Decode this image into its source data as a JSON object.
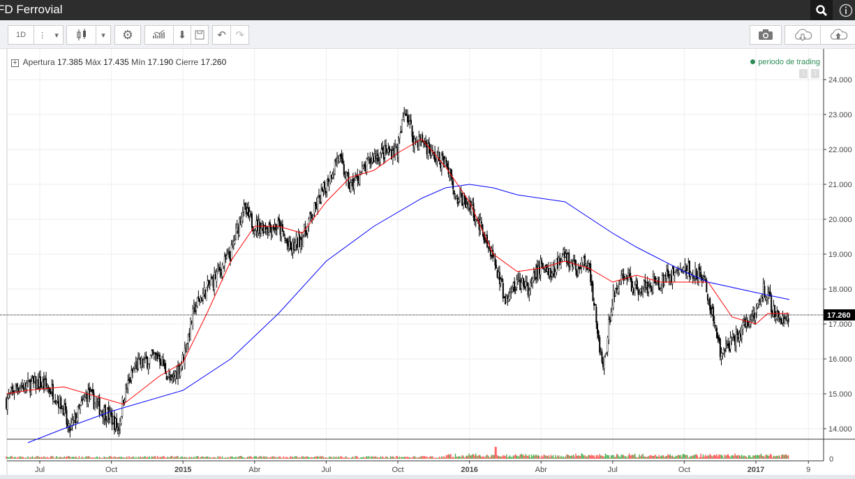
{
  "header": {
    "title": "FD Ferrovial",
    "search_icon": "search-icon",
    "info_icon": "info-icon"
  },
  "toolbar": {
    "interval": "1D"
  },
  "legend": {
    "open_label": "Apertura",
    "open": "17.385",
    "high_label": "Máx",
    "high": "17.435",
    "low_label": "Mín",
    "low": "17.190",
    "close_label": "Cierre",
    "close": "17.260"
  },
  "period_label": "periodo de trading",
  "colors": {
    "up": "#4caf50",
    "down": "#ff5252",
    "ma_fast": "#ff0000",
    "ma_slow": "#0000ff",
    "period": "#2e8b57"
  },
  "chart_data": {
    "type": "candlestick",
    "title": "FD Ferrovial",
    "ylim": [
      13.6,
      24.6
    ],
    "y_ticks": [
      "24.000",
      "23.000",
      "22.000",
      "21.000",
      "20.000",
      "19.000",
      "18.000",
      "17.000",
      "16.000",
      "15.000",
      "14.000"
    ],
    "x_ticks": [
      {
        "label": "Jul",
        "m": 0
      },
      {
        "label": "Oct",
        "m": 3
      },
      {
        "label": "2015",
        "m": 6
      },
      {
        "label": "Abr",
        "m": 9
      },
      {
        "label": "Jul",
        "m": 12
      },
      {
        "label": "Oct",
        "m": 15
      },
      {
        "label": "2016",
        "m": 18
      },
      {
        "label": "Abr",
        "m": 21
      },
      {
        "label": "Jul",
        "m": 24
      },
      {
        "label": "Oct",
        "m": 27
      },
      {
        "label": "2017",
        "m": 30
      },
      {
        "label": "9",
        "m": 32.2
      }
    ],
    "last_price": "17.260",
    "volume_axis_label": "0",
    "price_path": [
      [
        -1.4,
        14.8
      ],
      [
        -1,
        15.2
      ],
      [
        0,
        15.3
      ],
      [
        0.5,
        15.1
      ],
      [
        1,
        14.6
      ],
      [
        1.2,
        13.9
      ],
      [
        1.5,
        14.3
      ],
      [
        2,
        15.0
      ],
      [
        2.5,
        14.6
      ],
      [
        3,
        14.3
      ],
      [
        3.3,
        14.0
      ],
      [
        3.5,
        14.9
      ],
      [
        4,
        15.8
      ],
      [
        5,
        16.1
      ],
      [
        5.5,
        15.3
      ],
      [
        6,
        16.0
      ],
      [
        6.5,
        17.5
      ],
      [
        7,
        18.0
      ],
      [
        8,
        19.0
      ],
      [
        8.5,
        20.3
      ],
      [
        9,
        19.8
      ],
      [
        10,
        19.8
      ],
      [
        10.5,
        19.1
      ],
      [
        11,
        19.5
      ],
      [
        12,
        21.0
      ],
      [
        12.5,
        21.8
      ],
      [
        13,
        20.9
      ],
      [
        14,
        21.8
      ],
      [
        15,
        22.0
      ],
      [
        15.3,
        23.2
      ],
      [
        15.7,
        22.2
      ],
      [
        16,
        22.3
      ],
      [
        16.5,
        21.8
      ],
      [
        17,
        21.6
      ],
      [
        17.5,
        20.6
      ],
      [
        18,
        20.5
      ],
      [
        18.5,
        19.7
      ],
      [
        19,
        19.0
      ],
      [
        19.5,
        17.6
      ],
      [
        20,
        18.2
      ],
      [
        20.5,
        18.0
      ],
      [
        21,
        18.7
      ],
      [
        21.5,
        18.5
      ],
      [
        22,
        19.0
      ],
      [
        22.5,
        18.5
      ],
      [
        23,
        18.8
      ],
      [
        23.6,
        15.6
      ],
      [
        24,
        17.8
      ],
      [
        24.5,
        18.4
      ],
      [
        25,
        18.0
      ],
      [
        26,
        18.2
      ],
      [
        27,
        18.6
      ],
      [
        27.7,
        18.4
      ],
      [
        28,
        17.8
      ],
      [
        28.5,
        16.2
      ],
      [
        29,
        16.5
      ],
      [
        30,
        17.4
      ],
      [
        30.3,
        18.0
      ],
      [
        31,
        17.1
      ],
      [
        31.4,
        17.26
      ]
    ],
    "series": [
      {
        "name": "MA fast",
        "points": [
          [
            -1.4,
            15.0
          ],
          [
            -0.5,
            15.1
          ],
          [
            1,
            15.2
          ],
          [
            2.5,
            14.9
          ],
          [
            3.5,
            14.7
          ],
          [
            5,
            15.5
          ],
          [
            6,
            15.9
          ],
          [
            7,
            17.3
          ],
          [
            8,
            18.8
          ],
          [
            9,
            19.8
          ],
          [
            10,
            19.8
          ],
          [
            11,
            19.6
          ],
          [
            12,
            20.5
          ],
          [
            13,
            21.2
          ],
          [
            14,
            21.4
          ],
          [
            15,
            21.9
          ],
          [
            16,
            22.3
          ],
          [
            17,
            21.5
          ],
          [
            18,
            20.5
          ],
          [
            19,
            19.0
          ],
          [
            20,
            18.5
          ],
          [
            21,
            18.6
          ],
          [
            22,
            18.8
          ],
          [
            23,
            18.6
          ],
          [
            24,
            18.2
          ],
          [
            25,
            18.4
          ],
          [
            26,
            18.2
          ],
          [
            27,
            18.2
          ],
          [
            28,
            18.2
          ],
          [
            29,
            17.2
          ],
          [
            30,
            17.0
          ],
          [
            30.5,
            17.3
          ],
          [
            31.4,
            17.3
          ]
        ]
      },
      {
        "name": "MA slow",
        "points": [
          [
            -0.5,
            13.6
          ],
          [
            1,
            14.0
          ],
          [
            3,
            14.5
          ],
          [
            6,
            15.1
          ],
          [
            8,
            16.0
          ],
          [
            10,
            17.3
          ],
          [
            12,
            18.8
          ],
          [
            14,
            19.8
          ],
          [
            16,
            20.6
          ],
          [
            17,
            20.9
          ],
          [
            18,
            21.0
          ],
          [
            19,
            20.9
          ],
          [
            20,
            20.7
          ],
          [
            22,
            20.5
          ],
          [
            24,
            19.6
          ],
          [
            25,
            19.2
          ],
          [
            27,
            18.5
          ],
          [
            28,
            18.2
          ],
          [
            30,
            17.9
          ],
          [
            31.4,
            17.7
          ]
        ]
      }
    ]
  }
}
